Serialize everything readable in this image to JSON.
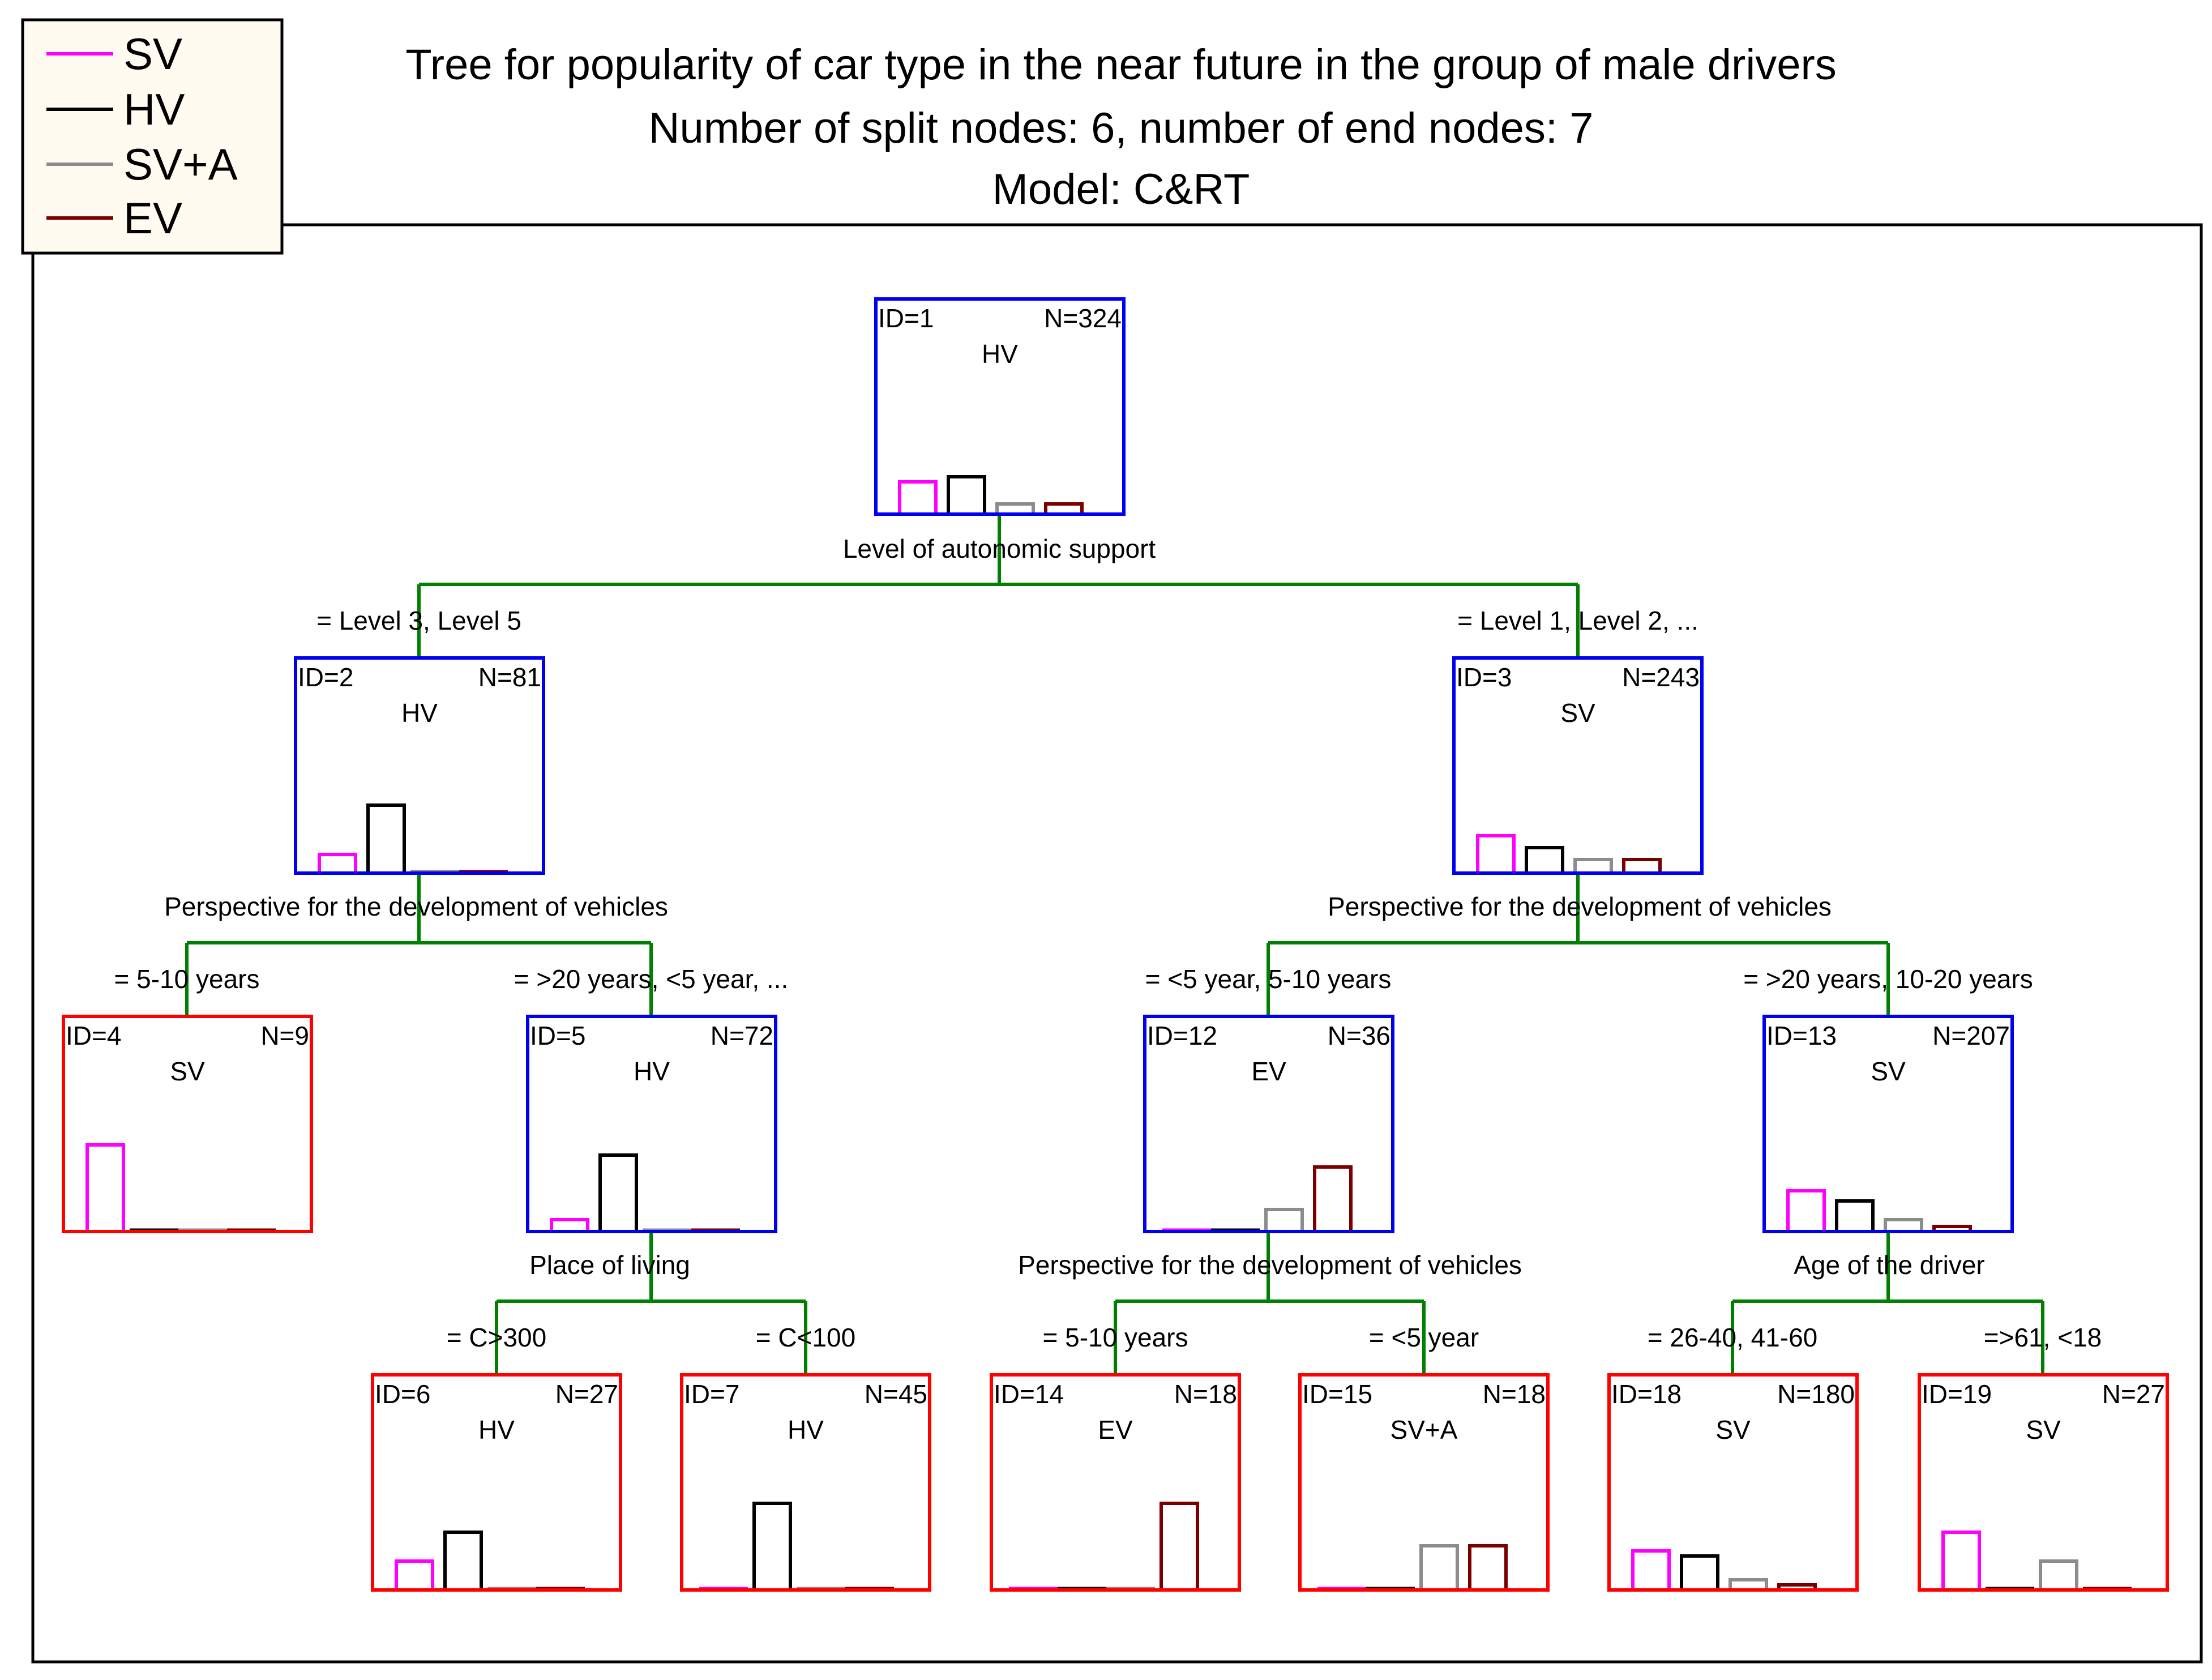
{
  "title": {
    "line1": "Tree for popularity of car type in the near future in the group of male drivers",
    "line2": "Number of split nodes: 6, number of end nodes: 7",
    "line3": "Model: C&RT"
  },
  "legend": [
    {
      "label": "SV",
      "color": "#ff00ff"
    },
    {
      "label": "HV",
      "color": "#000000"
    },
    {
      "label": "SV+A",
      "color": "#8c8c8c"
    },
    {
      "label": "EV",
      "color": "#7a0000"
    }
  ],
  "colors": {
    "split_node_border": "#0000ee",
    "end_node_border": "#ff0000",
    "connector": "#008000",
    "legend_background": "#fffbf0"
  },
  "nodes": [
    {
      "id": "ID=1",
      "n": "N=324",
      "class": "HV",
      "type": "split",
      "dist": [
        0.19,
        0.22,
        0.06,
        0.06
      ]
    },
    {
      "id": "ID=2",
      "n": "N=81",
      "class": "HV",
      "type": "split",
      "dist": [
        0.11,
        0.4,
        0.0,
        0.0
      ]
    },
    {
      "id": "ID=3",
      "n": "N=243",
      "class": "SV",
      "type": "split",
      "dist": [
        0.22,
        0.15,
        0.08,
        0.08
      ]
    },
    {
      "id": "ID=4",
      "n": "N=9",
      "class": "SV",
      "type": "end",
      "dist": [
        0.51,
        0.0,
        0.0,
        0.0
      ]
    },
    {
      "id": "ID=5",
      "n": "N=72",
      "class": "HV",
      "type": "split",
      "dist": [
        0.07,
        0.45,
        0.0,
        0.0
      ]
    },
    {
      "id": "ID=12",
      "n": "N=36",
      "class": "EV",
      "type": "split",
      "dist": [
        0.0,
        0.0,
        0.13,
        0.38
      ]
    },
    {
      "id": "ID=13",
      "n": "N=207",
      "class": "SV",
      "type": "split",
      "dist": [
        0.24,
        0.18,
        0.07,
        0.03
      ]
    },
    {
      "id": "ID=6",
      "n": "N=27",
      "class": "HV",
      "type": "end",
      "dist": [
        0.17,
        0.34,
        0.0,
        0.0
      ]
    },
    {
      "id": "ID=7",
      "n": "N=45",
      "class": "HV",
      "type": "end",
      "dist": [
        0.0,
        0.51,
        0.0,
        0.0
      ]
    },
    {
      "id": "ID=14",
      "n": "N=18",
      "class": "EV",
      "type": "end",
      "dist": [
        0.0,
        0.0,
        0.0,
        0.51
      ]
    },
    {
      "id": "ID=15",
      "n": "N=18",
      "class": "SV+A",
      "type": "end",
      "dist": [
        0.0,
        0.0,
        0.26,
        0.26
      ]
    },
    {
      "id": "ID=18",
      "n": "N=180",
      "class": "SV",
      "type": "end",
      "dist": [
        0.23,
        0.2,
        0.06,
        0.03
      ]
    },
    {
      "id": "ID=19",
      "n": "N=27",
      "class": "SV",
      "type": "end",
      "dist": [
        0.34,
        0.0,
        0.17,
        0.0
      ]
    }
  ],
  "splits": [
    {
      "variable": "Level of autonomic support",
      "left": "= Level 3, Level 5",
      "right": "= Level 1, Level 2, ..."
    },
    {
      "variable": "Perspective for the development of vehicles",
      "left": "= 5-10 years",
      "right": "= >20 years, <5 year, ..."
    },
    {
      "variable": "Perspective for the development of vehicles",
      "left": "= <5 year, 5-10 years",
      "right": "= >20 years, 10-20 years"
    },
    {
      "variable": "Place of living",
      "left": "= C>300",
      "right": "= C<100"
    },
    {
      "variable": "Perspective for the development of vehicles",
      "left": "= 5-10 years",
      "right": "= <5 year"
    },
    {
      "variable": "Age of the driver",
      "left": "= 26-40, 41-60",
      "right": "=>61, <18"
    }
  ]
}
